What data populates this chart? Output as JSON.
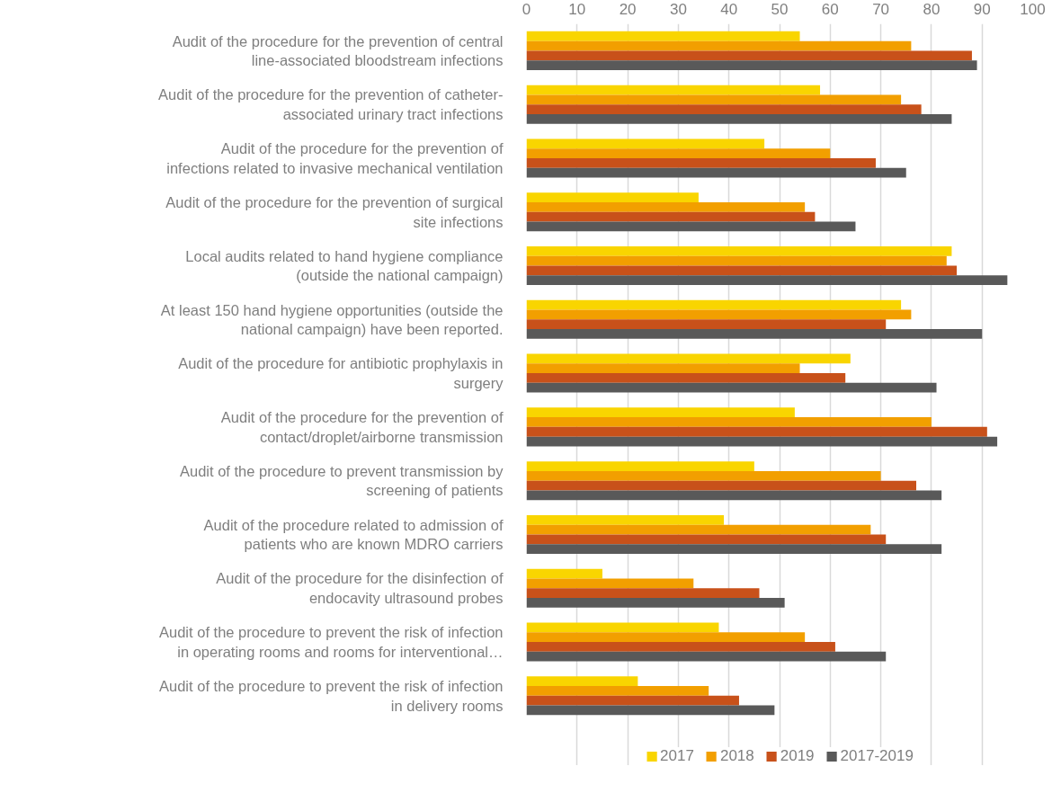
{
  "chart_data": {
    "type": "bar",
    "orientation": "horizontal",
    "categories": [
      "Audit of the procedure for the prevention of central\nline-associated bloodstream infections",
      "Audit of the procedure for the prevention of catheter-\nassociated urinary tract infections",
      "Audit of the procedure for the prevention of\ninfections related to invasive mechanical ventilation",
      "Audit of the procedure for the prevention of surgical\nsite infections",
      "Local audits related to hand hygiene compliance\n(outside the national campaign)",
      "At least 150 hand hygiene opportunities (outside the\nnational campaign) have been reported.",
      "Audit of the procedure for antibiotic prophylaxis in\nsurgery",
      "Audit of the procedure for the prevention of\ncontact/droplet/airborne transmission",
      "Audit of the procedure to prevent transmission by\nscreening of patients",
      "Audit of the procedure related to admission of\npatients who are known MDRO carriers",
      "Audit of the procedure for the disinfection of\nendocavity ultrasound probes",
      "Audit of the procedure to prevent the risk of infection\nin operating rooms and rooms for interventional…",
      "Audit of the procedure to prevent the risk of infection\nin delivery rooms"
    ],
    "series": [
      {
        "name": "2017",
        "color": "#f9d500",
        "values": [
          54,
          58,
          47,
          34,
          84,
          74,
          64,
          53,
          45,
          39,
          15,
          38,
          22
        ]
      },
      {
        "name": "2018",
        "color": "#f29f00",
        "values": [
          76,
          74,
          60,
          55,
          83,
          76,
          54,
          80,
          70,
          68,
          33,
          55,
          36
        ]
      },
      {
        "name": "2019",
        "color": "#c8511a",
        "values": [
          88,
          78,
          69,
          57,
          85,
          71,
          63,
          91,
          77,
          71,
          46,
          61,
          42
        ]
      },
      {
        "name": "2017-2019",
        "color": "#595959",
        "values": [
          89,
          84,
          75,
          65,
          95,
          90,
          81,
          93,
          82,
          82,
          51,
          71,
          49
        ]
      }
    ],
    "xlim": [
      0,
      100
    ],
    "xticks": [
      0,
      10,
      20,
      30,
      40,
      50,
      60,
      70,
      80,
      90,
      100
    ],
    "grid": "x",
    "legend": "bottom"
  }
}
